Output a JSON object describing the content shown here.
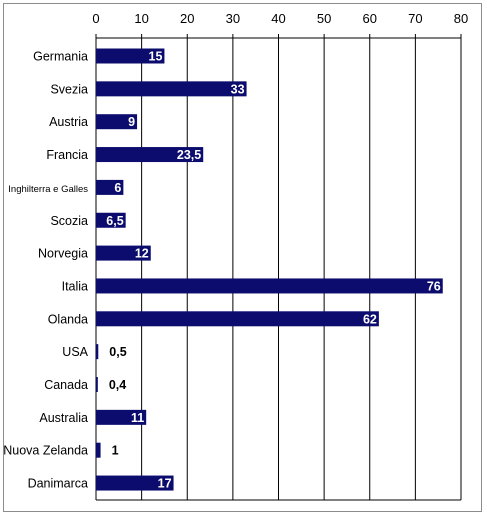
{
  "chart_data": {
    "type": "bar",
    "orientation": "horizontal",
    "title": "",
    "xlabel": "",
    "ylabel": "",
    "xlim": [
      0,
      80
    ],
    "x_ticks": [
      0,
      10,
      20,
      30,
      40,
      50,
      60,
      70,
      80
    ],
    "x_axis_position": "top",
    "grid": true,
    "legend": "none",
    "bar_color": "#0c0c6e",
    "label_color_inside": "#ffffff",
    "label_color_outside": "#000000",
    "categories": [
      "Germania",
      "Svezia",
      "Austria",
      "Francia",
      "Inghilterra e Galles",
      "Scozia",
      "Norvegia",
      "Italia",
      "Olanda",
      "USA",
      "Canada",
      "Australia",
      "Nuova Zelanda",
      "Danimarca"
    ],
    "values": [
      15,
      33,
      9,
      23.5,
      6,
      6.5,
      12,
      76,
      62,
      0.5,
      0.4,
      11,
      1,
      17
    ],
    "value_labels": [
      "15",
      "33",
      "9",
      "23,5",
      "6",
      "6,5",
      "12",
      "76",
      "62",
      "0,5",
      "0,4",
      "11",
      "1",
      "17"
    ]
  }
}
